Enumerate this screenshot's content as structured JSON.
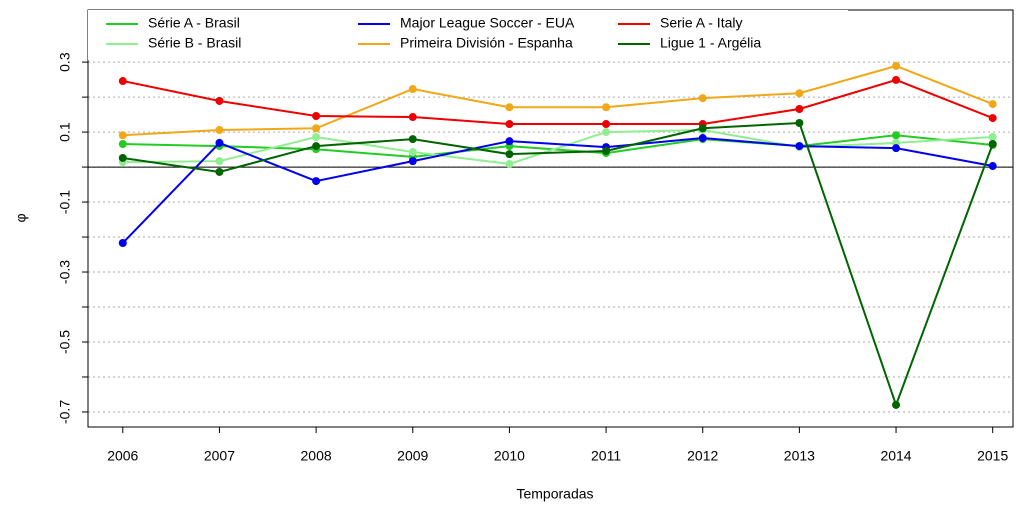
{
  "chart_data": {
    "type": "line",
    "x_label": "Temporadas",
    "y_label": "φ",
    "x": [
      2006,
      2007,
      2008,
      2009,
      2010,
      2011,
      2012,
      2013,
      2014,
      2015
    ],
    "xlim": [
      2005.64,
      2015.21
    ],
    "xticks": [
      2006,
      2007,
      2008,
      2009,
      2010,
      2011,
      2012,
      2013,
      2014,
      2015
    ],
    "ylim": [
      -0.743,
      0.449
    ],
    "yticks": [
      -0.7,
      -0.5,
      -0.3,
      -0.1,
      0.1,
      0.3
    ],
    "minor_yticks": [
      -0.6,
      -0.4,
      -0.2,
      0,
      0.2
    ],
    "grid": true,
    "hline": 0,
    "legend": "top-left",
    "series": [
      {
        "name": "Série A - Brasil",
        "color": "#22cc22",
        "values": [
          0.066,
          0.06,
          0.051,
          0.029,
          0.06,
          0.04,
          0.08,
          0.06,
          0.091,
          0.063
        ]
      },
      {
        "name": "Série B - Brasil",
        "color": "#90ee90",
        "values": [
          0.014,
          0.017,
          0.086,
          0.043,
          0.009,
          0.1,
          0.106,
          0.057,
          0.069,
          0.086
        ]
      },
      {
        "name": "Major League Soccer - EUA",
        "color": "#0000ee",
        "values": [
          -0.217,
          0.069,
          -0.04,
          0.017,
          0.074,
          0.057,
          0.083,
          0.06,
          0.054,
          0.003
        ]
      },
      {
        "name": "Primeira División - Espanha",
        "color": "#f0a818",
        "values": [
          0.091,
          0.106,
          0.111,
          0.223,
          0.171,
          0.171,
          0.197,
          0.211,
          0.289,
          0.18
        ]
      },
      {
        "name": "Serie A - Italy",
        "color": "#ee0000",
        "values": [
          0.246,
          0.189,
          0.146,
          0.143,
          0.123,
          0.123,
          0.123,
          0.166,
          0.249,
          0.14
        ]
      },
      {
        "name": "Ligue 1 - Argélia",
        "color": "#006400",
        "values": [
          0.026,
          -0.014,
          0.06,
          0.08,
          0.037,
          0.046,
          0.111,
          0.126,
          -0.68,
          0.066
        ]
      }
    ]
  }
}
